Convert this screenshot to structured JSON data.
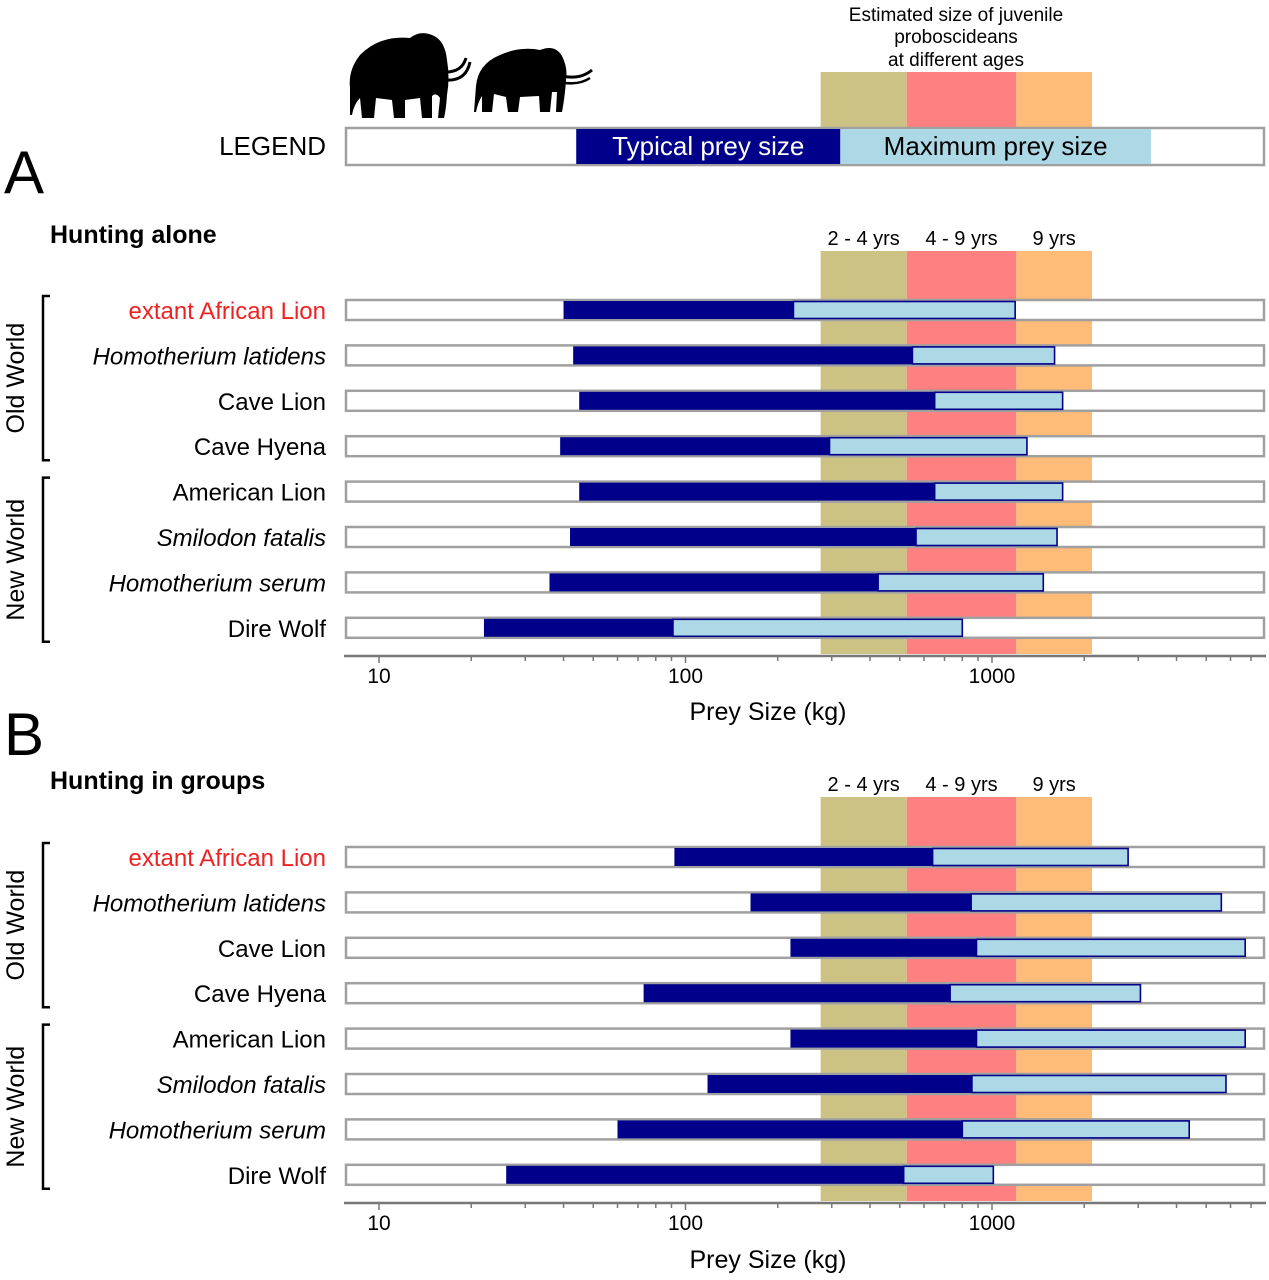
{
  "figure": {
    "legend": {
      "label": "LEGEND",
      "typical_label": "Typical prey size",
      "maximum_label": "Maximum prey size",
      "typical_range": [
        44,
        320
      ],
      "maximum_range": [
        320,
        3300
      ],
      "juvenile_title_lines": [
        "Estimated size of juvenile",
        "proboscideans",
        "at different ages"
      ],
      "icons": [
        "mammoth-silhouette-icon",
        "mastodon-silhouette-icon"
      ]
    },
    "colors": {
      "typical": "#00008B",
      "maximum": "#ADD8E6",
      "band_2_4": "#CCC284",
      "band_4_9": "#FF8080",
      "band_9": "#FFBB77",
      "track_border": "#A0A0A0",
      "highlight_label": "#EE2222"
    }
  },
  "chart_data": [
    {
      "type": "bar",
      "subtype": "floating-range-log",
      "panel_letter": "A",
      "title": "Hunting alone",
      "xlabel": "Prey Size (kg)",
      "xscale": "log",
      "xlim": [
        7.8,
        7700
      ],
      "xticks": [
        10,
        100,
        1000
      ],
      "xtick_labels": [
        "10",
        "100",
        "1000"
      ],
      "age_bands": [
        {
          "label": "2 - 4 yrs",
          "range": [
            276,
            527
          ]
        },
        {
          "label": "4 - 9 yrs",
          "range": [
            527,
            1200
          ]
        },
        {
          "label": "9 yrs",
          "range": [
            1200,
            2120
          ]
        }
      ],
      "groups": [
        {
          "name": "Old World",
          "rows": [
            0,
            3
          ]
        },
        {
          "name": "New World",
          "rows": [
            4,
            7
          ]
        }
      ],
      "categories": [
        "extant African Lion",
        "Homotherium latidens",
        "Cave Lion",
        "Cave Hyena",
        "American Lion",
        "Smilodon fatalis",
        "Homotherium serum",
        "Dire Wolf"
      ],
      "category_italic": [
        false,
        true,
        false,
        false,
        false,
        true,
        true,
        false
      ],
      "category_highlight": [
        true,
        false,
        false,
        false,
        false,
        false,
        false,
        false
      ],
      "series": [
        {
          "name": "Typical prey size",
          "values": [
            [
              40,
              225
            ],
            [
              43,
              550
            ],
            [
              45,
              650
            ],
            [
              39,
              295
            ],
            [
              45,
              650
            ],
            [
              42,
              565
            ],
            [
              36,
              425
            ],
            [
              22,
              91
            ]
          ]
        },
        {
          "name": "Maximum prey size",
          "values": [
            [
              225,
              1190
            ],
            [
              550,
              1600
            ],
            [
              650,
              1700
            ],
            [
              295,
              1300
            ],
            [
              650,
              1700
            ],
            [
              565,
              1630
            ],
            [
              425,
              1470
            ],
            [
              91,
              800
            ]
          ]
        }
      ]
    },
    {
      "type": "bar",
      "subtype": "floating-range-log",
      "panel_letter": "B",
      "title": "Hunting in groups",
      "xlabel": "Prey Size (kg)",
      "xscale": "log",
      "xlim": [
        7.8,
        7700
      ],
      "xticks": [
        10,
        100,
        1000
      ],
      "xtick_labels": [
        "10",
        "100",
        "1000"
      ],
      "age_bands": [
        {
          "label": "2 - 4 yrs",
          "range": [
            276,
            527
          ]
        },
        {
          "label": "4 - 9 yrs",
          "range": [
            527,
            1200
          ]
        },
        {
          "label": "9 yrs",
          "range": [
            1200,
            2120
          ]
        }
      ],
      "groups": [
        {
          "name": "Old World",
          "rows": [
            0,
            3
          ]
        },
        {
          "name": "New World",
          "rows": [
            4,
            7
          ]
        }
      ],
      "categories": [
        "extant African Lion",
        "Homotherium latidens",
        "Cave Lion",
        "Cave Hyena",
        "American Lion",
        "Smilodon fatalis",
        "Homotherium serum",
        "Dire Wolf"
      ],
      "category_italic": [
        false,
        true,
        false,
        false,
        false,
        true,
        true,
        false
      ],
      "category_highlight": [
        true,
        false,
        false,
        false,
        false,
        false,
        false,
        false
      ],
      "series": [
        {
          "name": "Typical prey size",
          "values": [
            [
              92,
              640
            ],
            [
              163,
              855
            ],
            [
              220,
              890
            ],
            [
              73,
              730
            ],
            [
              220,
              890
            ],
            [
              118,
              860
            ],
            [
              60,
              800
            ],
            [
              26,
              515
            ]
          ]
        },
        {
          "name": "Maximum prey size",
          "values": [
            [
              640,
              2780
            ],
            [
              855,
              5600
            ],
            [
              890,
              6700
            ],
            [
              730,
              3050
            ],
            [
              890,
              6700
            ],
            [
              860,
              5800
            ],
            [
              800,
              4400
            ],
            [
              515,
              1010
            ]
          ]
        }
      ]
    }
  ]
}
